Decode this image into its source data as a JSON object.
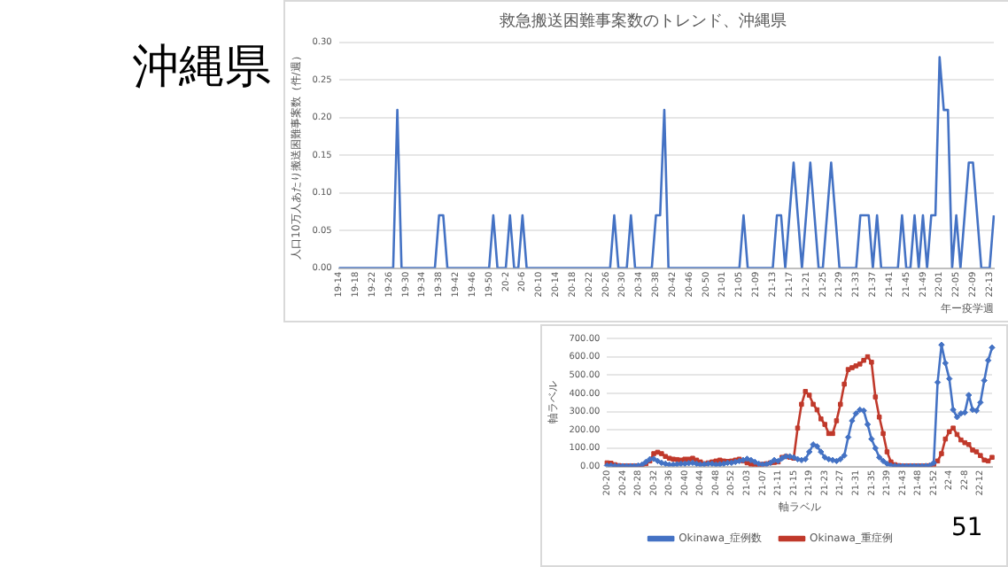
{
  "chart_data": [
    {
      "type": "line",
      "title": "救急搬送困難事案数のトレンド、沖縄県",
      "xlabel": "年ー疫学週",
      "ylabel": "人口10万人あたり搬送困難事案数（件/週）",
      "annotations": [
        "沖縄県"
      ],
      "categories": [
        "19-14",
        null,
        null,
        null,
        "19-18",
        null,
        null,
        null,
        "19-22",
        null,
        null,
        null,
        "19-26",
        null,
        null,
        null,
        "19-30",
        null,
        null,
        null,
        "19-34",
        null,
        null,
        null,
        "19-38",
        null,
        null,
        null,
        "19-42",
        null,
        null,
        null,
        "19-46",
        null,
        null,
        null,
        "19-50",
        null,
        null,
        null,
        "20-2",
        null,
        null,
        null,
        "20-6",
        null,
        null,
        null,
        "20-10",
        null,
        null,
        null,
        "20-14",
        null,
        null,
        null,
        "20-18",
        null,
        null,
        null,
        "20-22",
        null,
        null,
        null,
        "20-26",
        null,
        null,
        null,
        "20-30",
        null,
        null,
        null,
        "20-34",
        null,
        null,
        null,
        "20-38",
        null,
        null,
        null,
        "20-42",
        null,
        null,
        null,
        "20-46",
        null,
        null,
        null,
        "20-50",
        null,
        null,
        null,
        "21-01",
        null,
        null,
        null,
        "21-05",
        null,
        null,
        null,
        "21-09",
        null,
        null,
        null,
        "21-13",
        null,
        null,
        null,
        "21-17",
        null,
        null,
        null,
        "21-21",
        null,
        null,
        null,
        "21-25",
        null,
        null,
        null,
        "21-29",
        null,
        null,
        null,
        "21-33",
        null,
        null,
        null,
        "21-37",
        null,
        null,
        null,
        "21-41",
        null,
        null,
        null,
        "21-45",
        null,
        null,
        null,
        "21-49",
        null,
        null,
        null,
        "22-01",
        null,
        null,
        null,
        "22-05",
        null,
        null,
        null,
        "22-09",
        null,
        null,
        null,
        "22-13",
        null
      ],
      "series": [
        {
          "color": "#4472c4",
          "values": [
            0,
            0,
            0,
            0,
            0,
            0,
            0,
            0,
            0,
            0,
            0,
            0,
            0,
            0,
            0.21,
            0,
            0,
            0,
            0,
            0,
            0,
            0,
            0,
            0,
            0.07,
            0.07,
            0,
            0,
            0,
            0,
            0,
            0,
            0,
            0,
            0,
            0,
            0,
            0.07,
            0,
            0,
            0,
            0.07,
            0,
            0,
            0.07,
            0,
            0,
            0,
            0,
            0,
            0,
            0,
            0,
            0,
            0,
            0,
            0,
            0,
            0,
            0,
            0,
            0,
            0,
            0,
            0,
            0,
            0.07,
            0,
            0,
            0,
            0.07,
            0,
            0,
            0,
            0,
            0,
            0.07,
            0.07,
            0.21,
            0,
            0,
            0,
            0,
            0,
            0,
            0,
            0,
            0,
            0,
            0,
            0,
            0,
            0,
            0,
            0,
            0,
            0,
            0.07,
            0,
            0,
            0,
            0,
            0,
            0,
            0,
            0.07,
            0.07,
            0,
            0.07,
            0.14,
            0.07,
            0,
            0.07,
            0.14,
            0.07,
            0,
            0,
            0.07,
            0.14,
            0.07,
            0,
            0,
            0,
            0,
            0,
            0.07,
            0.07,
            0.07,
            0,
            0.07,
            0,
            0,
            0,
            0,
            0,
            0.07,
            0,
            0,
            0.07,
            0,
            0.07,
            0,
            0.07,
            0.07,
            0.28,
            0.21,
            0.21,
            0,
            0.07,
            0,
            0.07,
            0.14,
            0.14,
            0.07,
            0,
            0,
            0,
            0.07
          ]
        }
      ],
      "ylim": [
        0,
        0.3
      ],
      "yticks": [
        {
          "value": 0,
          "label": "0.00"
        },
        {
          "value": 0.05,
          "label": "0.05"
        },
        {
          "value": 0.1,
          "label": "0.10"
        },
        {
          "value": 0.15,
          "label": "0.15"
        },
        {
          "value": 0.2,
          "label": "0.20"
        },
        {
          "value": 0.25,
          "label": "0.25"
        },
        {
          "value": 0.3,
          "label": "0.30"
        }
      ],
      "grid": "y",
      "legend": false,
      "marker": "none",
      "line_style": "solid"
    },
    {
      "type": "line",
      "xlabel": "軸ラベル",
      "ylabel": "軸ラベル",
      "annotations": [
        "51"
      ],
      "categories": [
        "20-20",
        null,
        null,
        null,
        "20-24",
        null,
        null,
        null,
        "20-28",
        null,
        null,
        null,
        "20-32",
        null,
        null,
        null,
        "20-36",
        null,
        null,
        null,
        "20-40",
        null,
        null,
        null,
        "20-44",
        null,
        null,
        null,
        "20-48",
        null,
        null,
        null,
        "20-52",
        null,
        null,
        null,
        "21-03",
        null,
        null,
        null,
        "21-07",
        null,
        null,
        null,
        "21-11",
        null,
        null,
        null,
        "21-15",
        null,
        null,
        null,
        "21-19",
        null,
        null,
        null,
        "21-23",
        null,
        null,
        null,
        "21-27",
        null,
        null,
        null,
        "21-31",
        null,
        null,
        null,
        "21-35",
        null,
        null,
        null,
        "21-39",
        null,
        null,
        null,
        "21-43",
        null,
        null,
        null,
        "21-48",
        null,
        null,
        null,
        "21-52",
        null,
        null,
        null,
        "22-4",
        null,
        null,
        null,
        "22-8",
        null,
        null,
        null,
        "22-12",
        null,
        null,
        null
      ],
      "series": [
        {
          "name": "Okinawa_症例数",
          "color": "#4472c4",
          "marker": "diamond",
          "values": [
            5,
            5,
            3,
            2,
            2,
            2,
            2,
            2,
            5,
            10,
            25,
            40,
            42,
            30,
            20,
            15,
            10,
            10,
            12,
            15,
            15,
            18,
            20,
            15,
            10,
            12,
            15,
            15,
            10,
            12,
            15,
            20,
            20,
            25,
            30,
            35,
            42,
            35,
            25,
            15,
            10,
            12,
            20,
            35,
            30,
            45,
            55,
            55,
            50,
            40,
            35,
            40,
            80,
            120,
            110,
            80,
            50,
            40,
            35,
            30,
            40,
            60,
            160,
            250,
            290,
            310,
            305,
            230,
            150,
            100,
            50,
            30,
            15,
            5,
            3,
            2,
            2,
            2,
            2,
            2,
            2,
            2,
            3,
            5,
            20,
            460,
            665,
            565,
            480,
            310,
            270,
            290,
            295,
            390,
            310,
            305,
            350,
            470,
            580,
            650
          ]
        },
        {
          "name": "Okinawa_重症例",
          "color": "#c0392b",
          "marker": "square",
          "values": [
            20,
            18,
            10,
            5,
            3,
            3,
            3,
            3,
            3,
            5,
            15,
            30,
            70,
            78,
            70,
            55,
            45,
            40,
            38,
            35,
            40,
            40,
            45,
            35,
            25,
            15,
            20,
            25,
            30,
            35,
            30,
            28,
            30,
            35,
            40,
            30,
            20,
            12,
            8,
            10,
            12,
            15,
            20,
            22,
            25,
            50,
            55,
            50,
            45,
            210,
            340,
            410,
            390,
            340,
            310,
            260,
            230,
            180,
            180,
            250,
            340,
            450,
            530,
            540,
            550,
            560,
            580,
            600,
            570,
            380,
            270,
            180,
            80,
            25,
            10,
            5,
            3,
            3,
            3,
            3,
            3,
            3,
            3,
            5,
            10,
            30,
            70,
            150,
            190,
            210,
            175,
            145,
            130,
            120,
            90,
            80,
            60,
            35,
            30,
            50
          ]
        }
      ],
      "ylim": [
        0,
        700
      ],
      "yticks": [
        {
          "value": 0,
          "label": "0.00"
        },
        {
          "value": 100,
          "label": "100.00"
        },
        {
          "value": 200,
          "label": "200.00"
        },
        {
          "value": 300,
          "label": "300.00"
        },
        {
          "value": 400,
          "label": "400.00"
        },
        {
          "value": 500,
          "label": "500.00"
        },
        {
          "value": 600,
          "label": "600.00"
        },
        {
          "value": 700,
          "label": "700.00"
        }
      ],
      "grid": "y",
      "legend": "bottom",
      "line_style": "solid"
    }
  ]
}
